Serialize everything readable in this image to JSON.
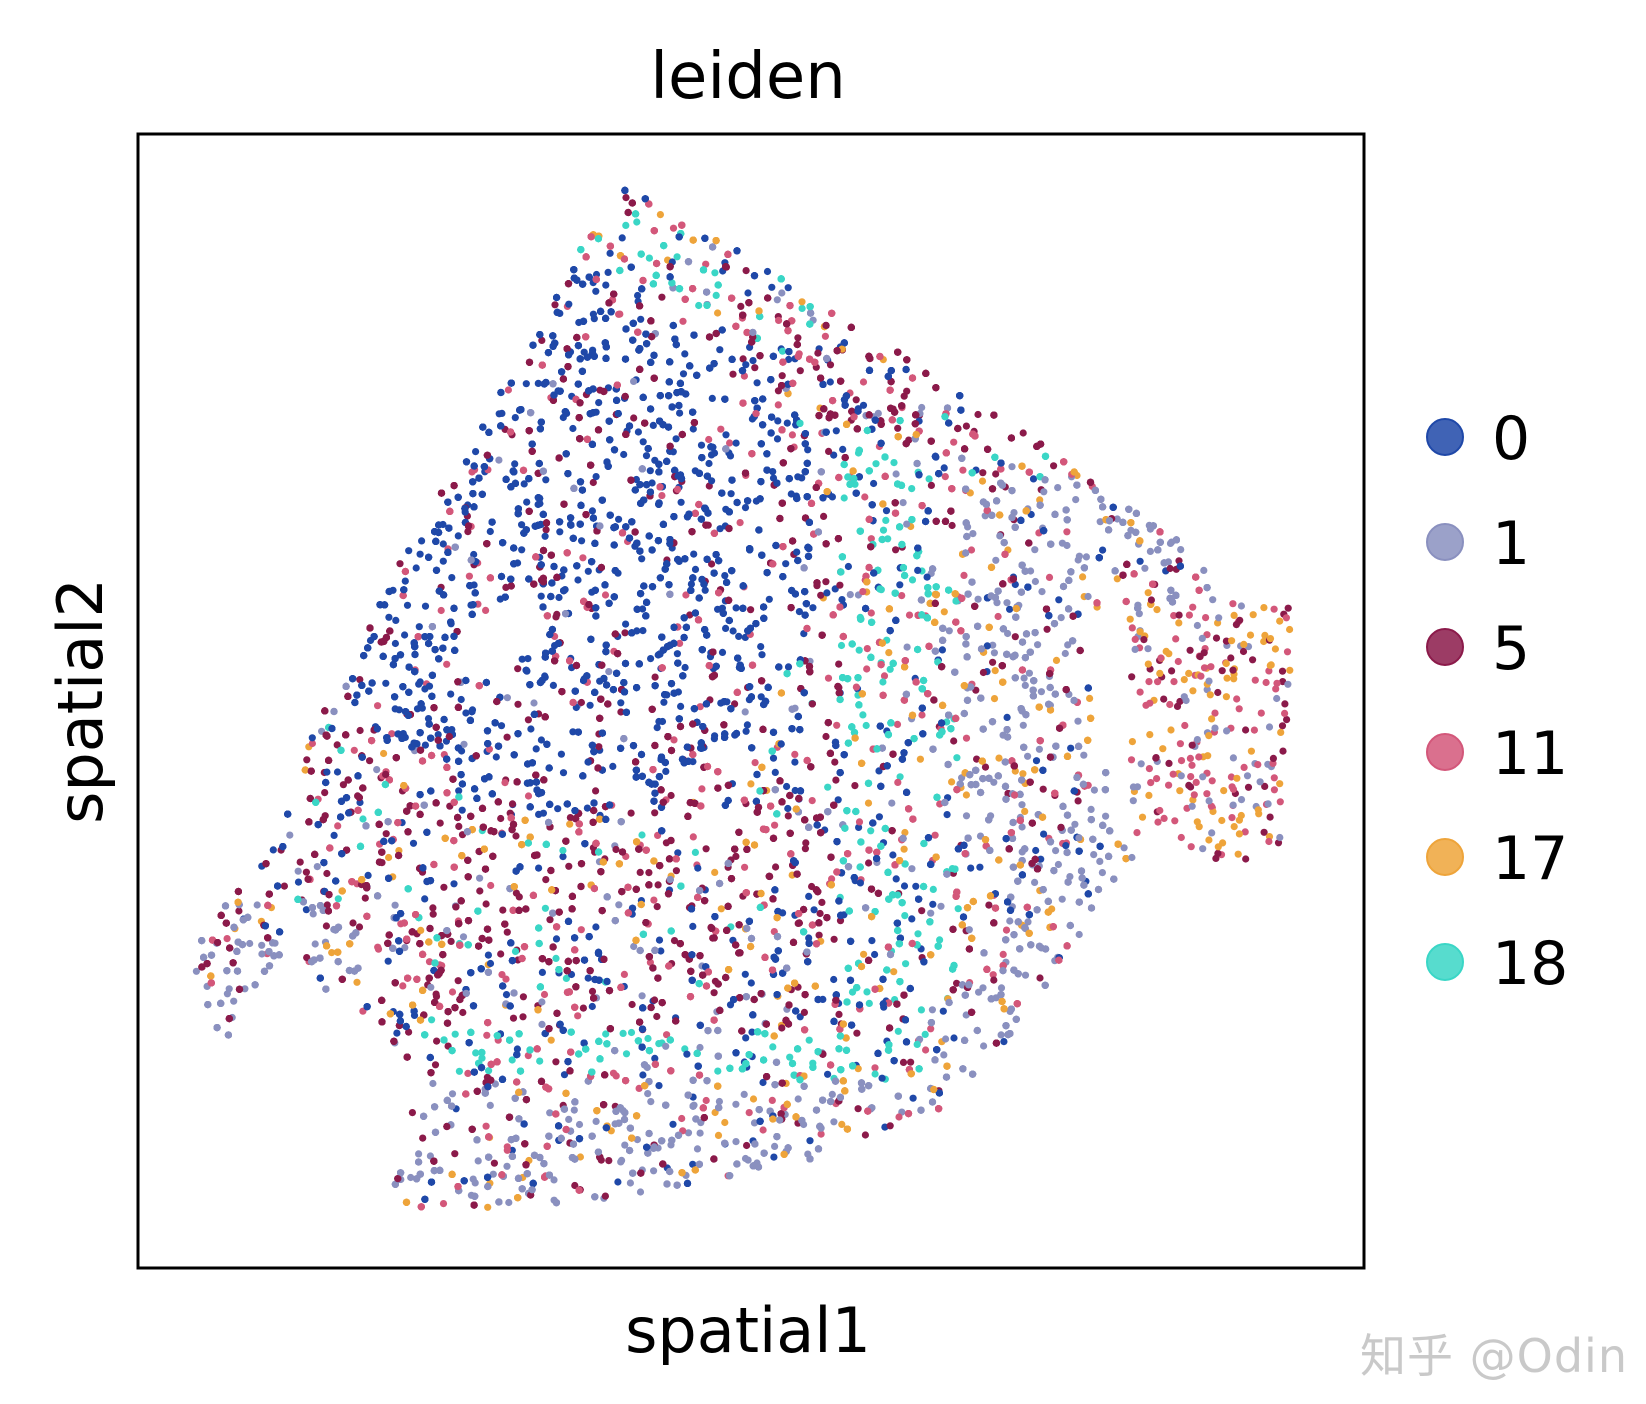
{
  "chart_data": {
    "type": "scatter",
    "title": "leiden",
    "xlabel": "spatial1",
    "ylabel": "spatial2",
    "ticks": "none",
    "grid": false,
    "legend_position": "right",
    "series": [
      {
        "name": "0",
        "color": "#1f48a8"
      },
      {
        "name": "1",
        "color": "#8a90bf"
      },
      {
        "name": "5",
        "color": "#8b1a4a"
      },
      {
        "name": "11",
        "color": "#d3577a"
      },
      {
        "name": "17",
        "color": "#eea43a"
      },
      {
        "name": "18",
        "color": "#3ad6c6"
      }
    ]
  },
  "watermark": "知乎 @Odin"
}
